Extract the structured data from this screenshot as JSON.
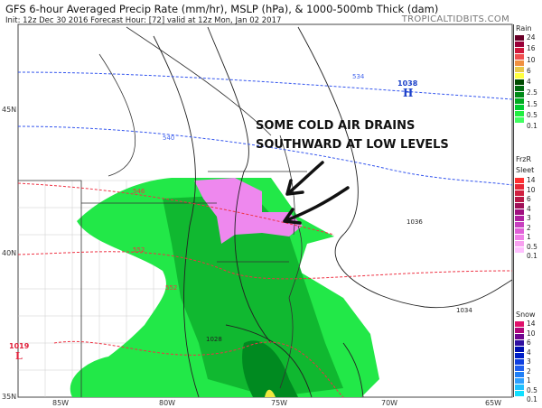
{
  "header": {
    "title": "GFS 6-hour Averaged Precip Rate (mm/hr), MSLP (hPa), & 1000-500mb Thick (dam)",
    "subtitle": "Init: 12z Dec 30 2016   Forecast Hour: [72]   valid at 12z Mon, Jan 02 2017",
    "brand": "TROPICALTIDBITS.COM"
  },
  "map": {
    "latitude_labels": [
      "45N",
      "40N",
      "35N"
    ],
    "longitude_labels": [
      "85W",
      "80W",
      "75W",
      "70W",
      "65W"
    ],
    "annotation": [
      "SOME COLD AIR DRAINS",
      "SOUTHWARD AT LOW LEVELS"
    ],
    "high_pressure": {
      "value": "1038",
      "symbol": "H",
      "color": "#1a3fc8"
    },
    "low_pressure": {
      "value": "1019",
      "symbol": "L",
      "color": "#e0203a"
    },
    "isobar_labels": [
      "1036",
      "1034",
      "1028"
    ],
    "thickness_labels": {
      "blue": [
        "534",
        "540"
      ],
      "red": [
        "546",
        "552",
        "552"
      ]
    }
  },
  "legend": {
    "rain": {
      "title": "Rain",
      "labels": [
        "24",
        "16",
        "10",
        "6",
        "4",
        "2.5",
        "1.5",
        "0.5",
        "0.1"
      ],
      "colors": [
        "#6a0028",
        "#9a0038",
        "#d0183c",
        "#f05050",
        "#f09040",
        "#e8c848",
        "#ffff40",
        "#004a00",
        "#006a10",
        "#008a18",
        "#00aa20",
        "#00cc30",
        "#20ee40",
        "#40ff60",
        "#ffffff"
      ]
    },
    "frzr": {
      "title": "FrzR",
      "title2": "Sleet",
      "labels": [
        "14",
        "10",
        "6",
        "4",
        "3",
        "2",
        "1",
        "0.5",
        "0.1"
      ],
      "colors": [
        "#ff3030",
        "#e82838",
        "#d02040",
        "#b81848",
        "#a01058",
        "#a01080",
        "#b020a0",
        "#c840c0",
        "#e060d8",
        "#f080e8",
        "#f8a0f0",
        "#ffc0ff",
        "#ffffff"
      ]
    },
    "snow": {
      "title": "Snow",
      "labels": [
        "14",
        "10",
        "6",
        "4",
        "3",
        "2",
        "1",
        "0.5",
        "0.1"
      ],
      "colors": [
        "#e0106a",
        "#b0087a",
        "#700890",
        "#3010a0",
        "#0010b0",
        "#0020c8",
        "#1040e0",
        "#2060f0",
        "#2080f8",
        "#30a0ff",
        "#20c0ff",
        "#10e0ff",
        "#ffffff"
      ]
    }
  }
}
